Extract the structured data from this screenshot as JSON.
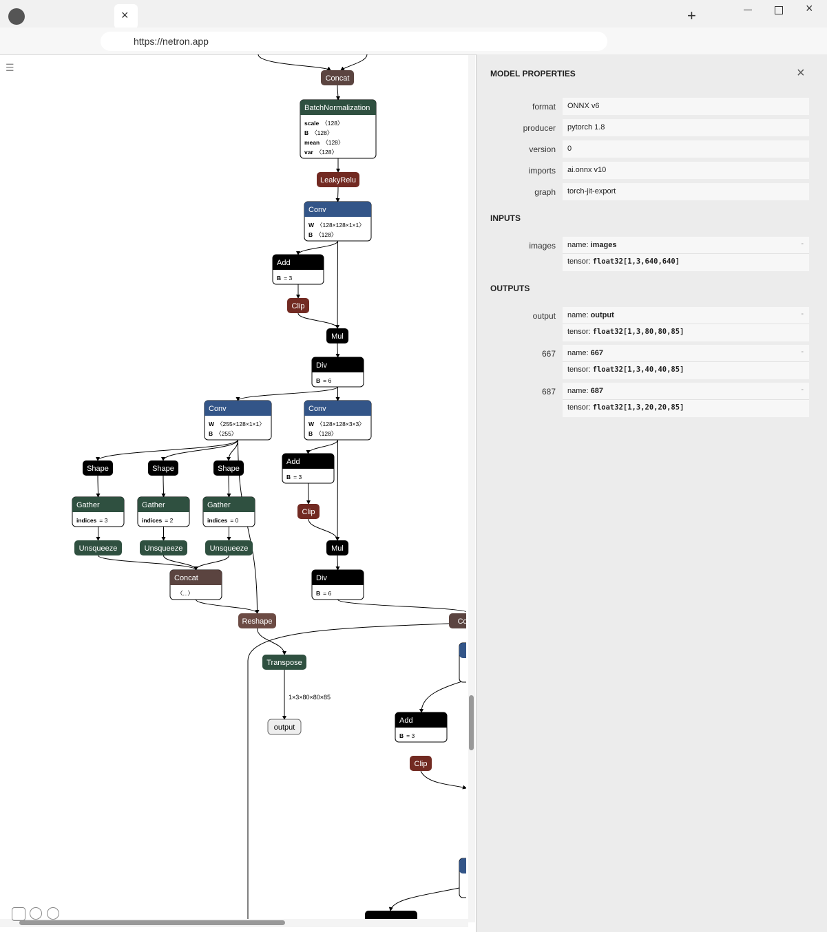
{
  "browser": {
    "url": "https://netron.app"
  },
  "graph": {
    "nodes": [
      {
        "label": "Concat"
      },
      {
        "label": "BatchNormalization",
        "attrs": [
          {
            "name": "scale",
            "value": "〈128〉"
          },
          {
            "name": "B",
            "value": "〈128〉"
          },
          {
            "name": "mean",
            "value": "〈128〉"
          },
          {
            "name": "var",
            "value": "〈128〉"
          }
        ]
      },
      {
        "label": "LeakyRelu"
      },
      {
        "label": "Conv",
        "attrs": [
          {
            "name": "W",
            "value": "〈128×128×1×1〉"
          },
          {
            "name": "B",
            "value": "〈128〉"
          }
        ]
      },
      {
        "label": "Add",
        "attrs": [
          {
            "name": "B",
            "value": "= 3"
          }
        ]
      },
      {
        "label": "Clip"
      },
      {
        "label": "Mul"
      },
      {
        "label": "Div",
        "attrs": [
          {
            "name": "B",
            "value": "= 6"
          }
        ]
      },
      {
        "label": "Conv",
        "attrs": [
          {
            "name": "W",
            "value": "〈255×128×1×1〉"
          },
          {
            "name": "B",
            "value": "〈255〉"
          }
        ]
      },
      {
        "label": "Conv",
        "attrs": [
          {
            "name": "W",
            "value": "〈128×128×3×3〉"
          },
          {
            "name": "B",
            "value": "〈128〉"
          }
        ]
      },
      {
        "label": "Shape"
      },
      {
        "label": "Shape"
      },
      {
        "label": "Shape"
      },
      {
        "label": "Gather",
        "attrs": [
          {
            "name": "indices",
            "value": "= 3"
          }
        ]
      },
      {
        "label": "Gather",
        "attrs": [
          {
            "name": "indices",
            "value": "= 2"
          }
        ]
      },
      {
        "label": "Gather",
        "attrs": [
          {
            "name": "indices",
            "value": "= 0"
          }
        ]
      },
      {
        "label": "Unsqueeze"
      },
      {
        "label": "Unsqueeze"
      },
      {
        "label": "Unsqueeze"
      },
      {
        "label": "Concat",
        "attrs": [
          {
            "value": "〈...〉"
          }
        ]
      },
      {
        "label": "Add",
        "attrs": [
          {
            "name": "B",
            "value": "= 3"
          }
        ]
      },
      {
        "label": "Clip"
      },
      {
        "label": "Mul"
      },
      {
        "label": "Div",
        "attrs": [
          {
            "name": "B",
            "value": "= 6"
          }
        ]
      },
      {
        "label": "Reshape"
      },
      {
        "label": "Concat"
      },
      {
        "label": "Transpose"
      },
      {
        "label": "output"
      },
      {
        "label": "Add",
        "attrs": [
          {
            "name": "B",
            "value": "= 3"
          }
        ]
      },
      {
        "label": "Clip"
      }
    ],
    "tensor_labels": [
      "1×3×80×80×85"
    ]
  },
  "panel": {
    "title": "MODEL PROPERTIES",
    "properties": [
      {
        "label": "format",
        "value": "ONNX v6"
      },
      {
        "label": "producer",
        "value": "pytorch 1.8"
      },
      {
        "label": "version",
        "value": "0"
      },
      {
        "label": "imports",
        "value": "ai.onnx v10"
      },
      {
        "label": "graph",
        "value": "torch-jit-export"
      }
    ],
    "inputs_title": "INPUTS",
    "inputs": [
      {
        "label": "images",
        "name_key": "name:",
        "name": "images",
        "tensor_key": "tensor:",
        "tensor": "float32[1,3,640,640]",
        "toggle": "-"
      }
    ],
    "outputs_title": "OUTPUTS",
    "outputs": [
      {
        "label": "output",
        "name_key": "name:",
        "name": "output",
        "tensor_key": "tensor:",
        "tensor": "float32[1,3,80,80,85]",
        "toggle": "-"
      },
      {
        "label": "667",
        "name_key": "name:",
        "name": "667",
        "tensor_key": "tensor:",
        "tensor": "float32[1,3,40,40,85]",
        "toggle": "-"
      },
      {
        "label": "687",
        "name_key": "name:",
        "name": "687",
        "tensor_key": "tensor:",
        "tensor": "float32[1,3,20,20,85]",
        "toggle": "-"
      }
    ]
  }
}
